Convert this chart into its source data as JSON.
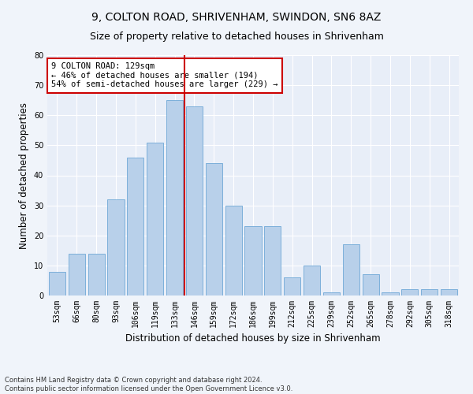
{
  "title1": "9, COLTON ROAD, SHRIVENHAM, SWINDON, SN6 8AZ",
  "title2": "Size of property relative to detached houses in Shrivenham",
  "xlabel": "Distribution of detached houses by size in Shrivenham",
  "ylabel": "Number of detached properties",
  "categories": [
    "53sqm",
    "66sqm",
    "80sqm",
    "93sqm",
    "106sqm",
    "119sqm",
    "133sqm",
    "146sqm",
    "159sqm",
    "172sqm",
    "186sqm",
    "199sqm",
    "212sqm",
    "225sqm",
    "239sqm",
    "252sqm",
    "265sqm",
    "278sqm",
    "292sqm",
    "305sqm",
    "318sqm"
  ],
  "values": [
    8,
    14,
    14,
    32,
    46,
    51,
    65,
    63,
    44,
    30,
    23,
    23,
    6,
    10,
    1,
    17,
    7,
    1,
    2,
    2,
    2
  ],
  "bar_color": "#b8d0ea",
  "bar_edge_color": "#6fa8d6",
  "vline_color": "#cc0000",
  "vline_x": 6.5,
  "ylim": [
    0,
    80
  ],
  "yticks": [
    0,
    10,
    20,
    30,
    40,
    50,
    60,
    70,
    80
  ],
  "annotation_text": "9 COLTON ROAD: 129sqm\n← 46% of detached houses are smaller (194)\n54% of semi-detached houses are larger (229) →",
  "annotation_box_color": "#ffffff",
  "annotation_box_edge_color": "#cc0000",
  "footnote1": "Contains HM Land Registry data © Crown copyright and database right 2024.",
  "footnote2": "Contains public sector information licensed under the Open Government Licence v3.0.",
  "bg_color": "#e8eef8",
  "fig_bg_color": "#f0f4fa",
  "grid_color": "#ffffff",
  "title1_fontsize": 10,
  "title2_fontsize": 9,
  "xlabel_fontsize": 8.5,
  "ylabel_fontsize": 8.5,
  "annotation_fontsize": 7.5,
  "tick_fontsize": 7
}
